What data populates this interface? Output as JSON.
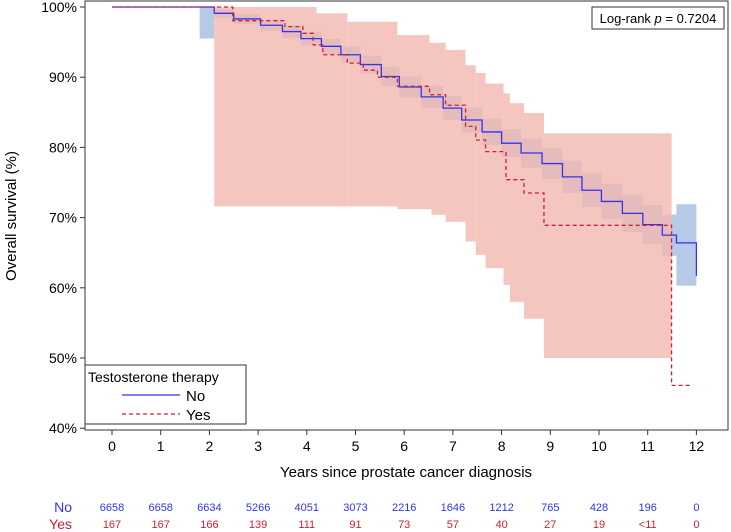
{
  "chart_data": {
    "type": "line",
    "subtype": "kaplan-meier",
    "xlabel": "Years since prostate cancer diagnosis",
    "ylabel": "Overall survival (%)",
    "xlim": [
      0,
      12
    ],
    "ylim": [
      40,
      100
    ],
    "x_ticks": [
      0,
      1,
      2,
      3,
      4,
      5,
      6,
      7,
      8,
      9,
      10,
      11,
      12
    ],
    "y_ticks": [
      "40%",
      "50%",
      "60%",
      "70%",
      "80%",
      "90%",
      "100%"
    ],
    "y_tick_values": [
      40,
      50,
      60,
      70,
      80,
      90,
      100
    ],
    "annotation": "Log-rank p = 0.7204",
    "annotation_parts": {
      "prefix": "Log-rank ",
      "p": "p",
      "suffix": " = 0.7204"
    },
    "legend": {
      "title": "Testosterone therapy",
      "placement": "bottom-left"
    },
    "series": [
      {
        "name": "No",
        "color": "#3333ee",
        "band_color": "#a9bfe2",
        "dash": false,
        "steps": [
          [
            0,
            100
          ],
          [
            1.8,
            100
          ],
          [
            2.1,
            99.1
          ],
          [
            2.5,
            98.3
          ],
          [
            3.05,
            97.4
          ],
          [
            3.5,
            96.5
          ],
          [
            3.88,
            95.5
          ],
          [
            4.3,
            94.4
          ],
          [
            4.7,
            93.2
          ],
          [
            5.1,
            91.8
          ],
          [
            5.53,
            90.1
          ],
          [
            5.9,
            88.6
          ],
          [
            6.35,
            87.2
          ],
          [
            6.8,
            85.6
          ],
          [
            7.18,
            83.9
          ],
          [
            7.6,
            82.2
          ],
          [
            8.0,
            80.6
          ],
          [
            8.4,
            79.2
          ],
          [
            8.83,
            77.7
          ],
          [
            9.25,
            75.8
          ],
          [
            9.65,
            73.9
          ],
          [
            10.05,
            72.3
          ],
          [
            10.48,
            70.6
          ],
          [
            10.9,
            69.0
          ],
          [
            11.3,
            67.5
          ],
          [
            11.59,
            66.4
          ],
          [
            12.0,
            66.4
          ],
          [
            12.0,
            61.7
          ]
        ],
        "ci_half_width": [
          [
            1.8,
            2.2
          ],
          [
            2.1,
            0.6
          ],
          [
            4,
            1.0
          ],
          [
            6,
            1.5
          ],
          [
            8,
            2.0
          ],
          [
            10,
            2.5
          ],
          [
            11.5,
            3.0
          ]
        ],
        "ci_tail": {
          "from": 11.5,
          "to": 12.0,
          "upper": 71.9,
          "lower": 60.3
        },
        "at_risk": [
          "6658",
          "6658",
          "6634",
          "5266",
          "4051",
          "3073",
          "2216",
          "1646",
          "1212",
          "765",
          "428",
          "196",
          "0"
        ]
      },
      {
        "name": "Yes",
        "color": "#cc2233",
        "band_color": "#f2b8b0",
        "dash": true,
        "steps": [
          [
            0,
            100
          ],
          [
            2.48,
            98.05
          ],
          [
            3.55,
            97.2
          ],
          [
            3.92,
            96.25
          ],
          [
            4.13,
            94.6
          ],
          [
            4.33,
            93.2
          ],
          [
            4.83,
            92.0
          ],
          [
            5.16,
            91.0
          ],
          [
            5.45,
            90.0
          ],
          [
            5.86,
            88.7
          ],
          [
            6.52,
            87.5
          ],
          [
            6.85,
            86.0
          ],
          [
            7.26,
            83.0
          ],
          [
            7.47,
            81.05
          ],
          [
            7.67,
            79.4
          ],
          [
            8.09,
            75.4
          ],
          [
            8.46,
            73.5
          ],
          [
            8.87,
            68.9
          ],
          [
            11.49,
            46.1
          ],
          [
            11.88,
            46.1
          ]
        ],
        "ci_upper": [
          [
            2.1,
            100
          ],
          [
            4.2,
            99.1
          ],
          [
            4.83,
            97.9
          ],
          [
            5.86,
            96.0
          ],
          [
            6.52,
            94.9
          ],
          [
            6.85,
            93.9
          ],
          [
            7.26,
            91.7
          ],
          [
            7.47,
            90.6
          ],
          [
            7.67,
            89.1
          ],
          [
            8.04,
            87.7
          ],
          [
            8.17,
            86.3
          ],
          [
            8.46,
            84.9
          ],
          [
            8.87,
            82.0
          ],
          [
            11.49,
            82.0
          ]
        ],
        "ci_lower": [
          [
            2.1,
            71.6
          ],
          [
            5.86,
            71.2
          ],
          [
            6.56,
            70.4
          ],
          [
            6.85,
            69.4
          ],
          [
            7.26,
            66.6
          ],
          [
            7.47,
            64.7
          ],
          [
            7.67,
            62.8
          ],
          [
            8.04,
            60.4
          ],
          [
            8.17,
            58.0
          ],
          [
            8.46,
            55.6
          ],
          [
            8.87,
            50.0
          ],
          [
            11.49,
            50.0
          ]
        ],
        "at_risk": [
          "167",
          "167",
          "166",
          "139",
          "111",
          "91",
          "73",
          "57",
          "40",
          "27",
          "19",
          "<11",
          "0"
        ]
      }
    ]
  }
}
